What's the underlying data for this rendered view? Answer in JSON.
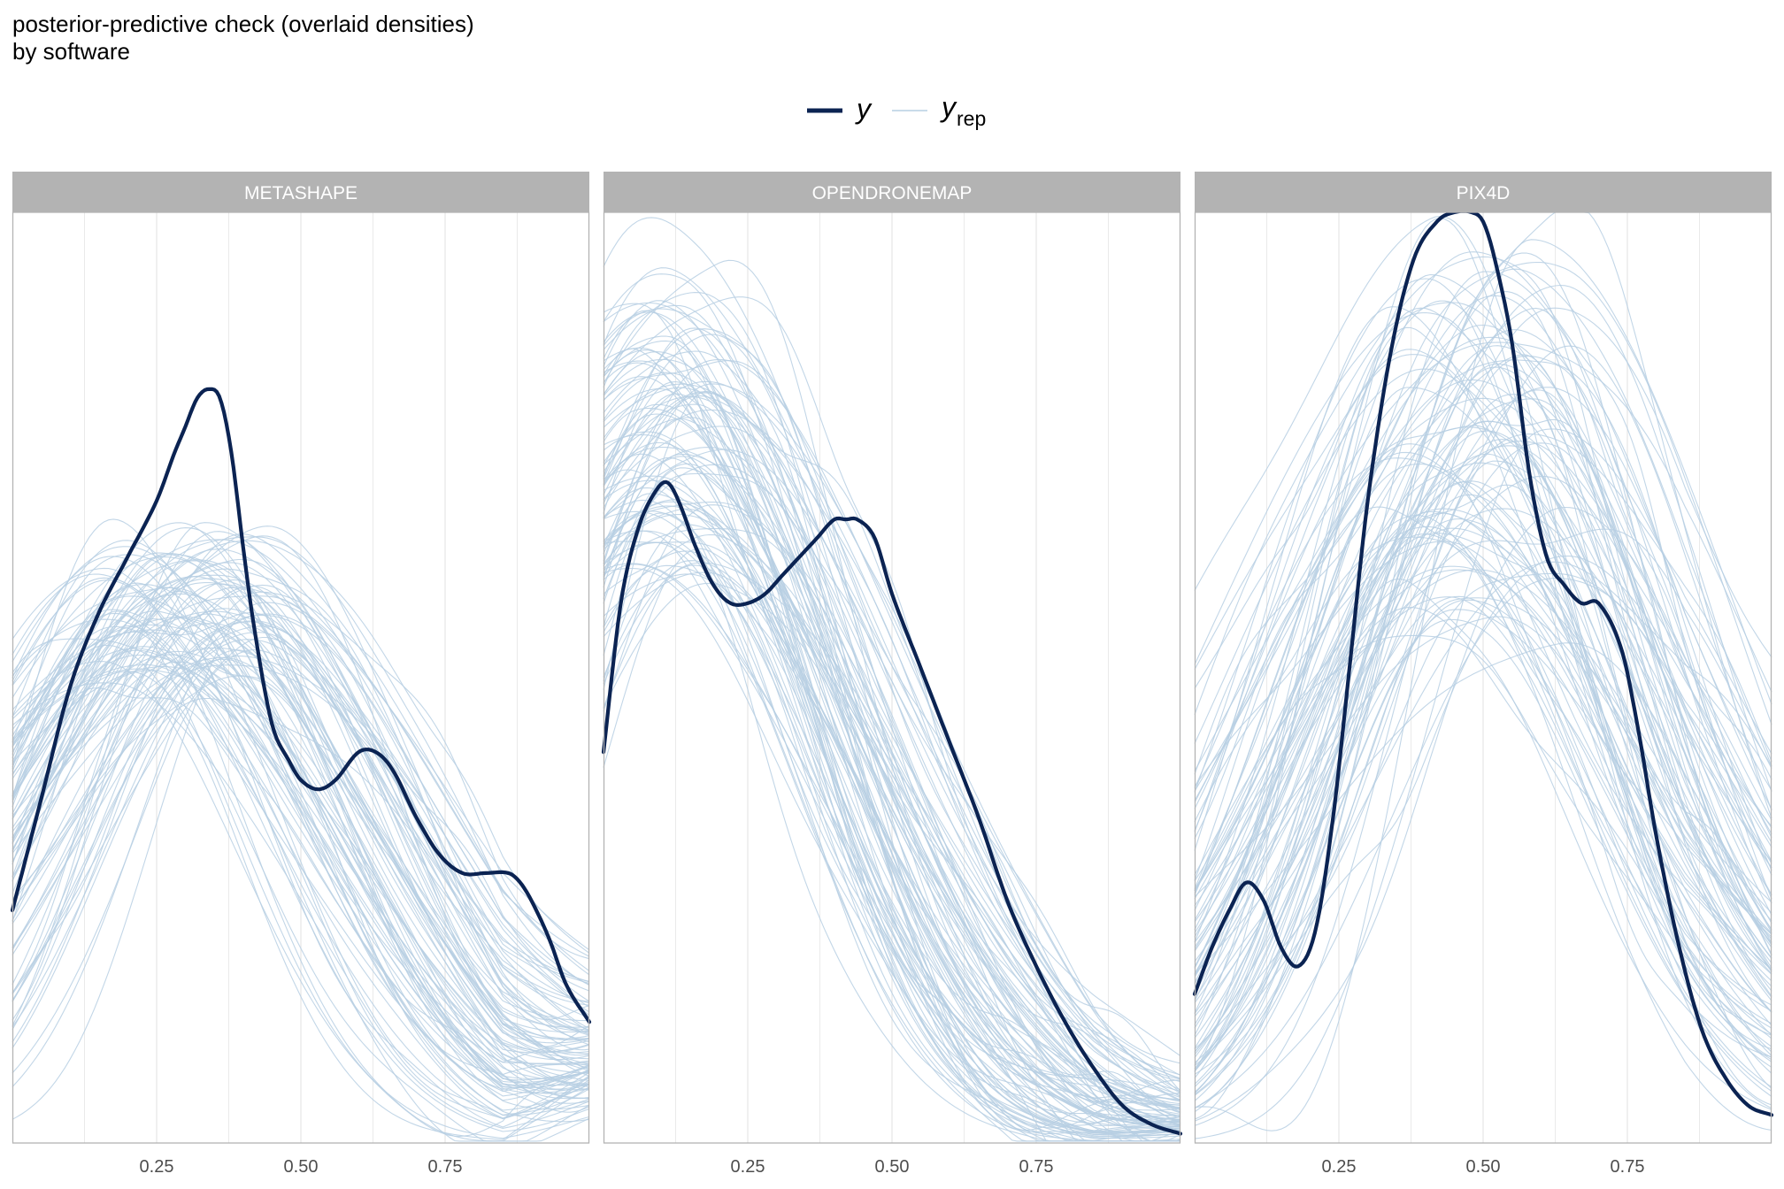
{
  "title": "posterior-predictive check (overlaid densities)",
  "subtitle": "by software",
  "legend": {
    "observed_label": "y",
    "replicated_label": "y",
    "replicated_subscript": "rep"
  },
  "colors": {
    "observed": "#0b2352",
    "replicated": "#b7cfe3",
    "strip": "#b3b3b3",
    "strip_text": "#ffffff",
    "grid": "#e5e5e5",
    "border": "#b3b3b3"
  },
  "chart_data": {
    "type": "line",
    "x_ticks": [
      0.25,
      0.5,
      0.75
    ],
    "x_tick_labels": [
      "0.25",
      "0.50",
      "0.75"
    ],
    "xlim": [
      0.0,
      1.0
    ],
    "y_axis_shown": false,
    "grid": true,
    "legend_position": "top",
    "panels": [
      {
        "name": "METASHAPE",
        "ylim": [
          0,
          1.0
        ],
        "series": [
          {
            "name": "y",
            "x": [
              0.0,
              0.05,
              0.1,
              0.15,
              0.2,
              0.25,
              0.28,
              0.3,
              0.32,
              0.34,
              0.36,
              0.38,
              0.4,
              0.42,
              0.45,
              0.48,
              0.5,
              0.53,
              0.56,
              0.6,
              0.63,
              0.66,
              0.7,
              0.74,
              0.78,
              0.82,
              0.86,
              0.88,
              0.9,
              0.93,
              0.96,
              1.0
            ],
            "values": [
              0.25,
              0.37,
              0.49,
              0.57,
              0.63,
              0.69,
              0.74,
              0.77,
              0.8,
              0.81,
              0.8,
              0.74,
              0.64,
              0.55,
              0.45,
              0.41,
              0.39,
              0.38,
              0.39,
              0.42,
              0.42,
              0.4,
              0.35,
              0.31,
              0.29,
              0.29,
              0.29,
              0.28,
              0.26,
              0.22,
              0.17,
              0.13
            ]
          }
        ],
        "replicates": {
          "count": 100,
          "x_range": [
            0.0,
            1.0
          ],
          "peak_location_approx": [
            0.15,
            0.45
          ],
          "peak_density_approx": [
            0.5,
            0.65
          ],
          "density_at_x1_approx": [
            0.05,
            0.15
          ]
        }
      },
      {
        "name": "OPENDRONEMAP",
        "ylim": [
          0,
          1.0
        ],
        "series": [
          {
            "name": "y",
            "x": [
              0.0,
              0.03,
              0.06,
              0.09,
              0.11,
              0.13,
              0.16,
              0.19,
              0.22,
              0.25,
              0.28,
              0.31,
              0.34,
              0.37,
              0.4,
              0.42,
              0.44,
              0.47,
              0.5,
              0.55,
              0.6,
              0.65,
              0.7,
              0.75,
              0.8,
              0.85,
              0.9,
              0.95,
              1.0
            ],
            "values": [
              0.42,
              0.58,
              0.66,
              0.7,
              0.71,
              0.69,
              0.64,
              0.6,
              0.58,
              0.58,
              0.59,
              0.61,
              0.63,
              0.65,
              0.67,
              0.67,
              0.67,
              0.65,
              0.59,
              0.51,
              0.43,
              0.35,
              0.26,
              0.19,
              0.13,
              0.08,
              0.04,
              0.02,
              0.01
            ]
          }
        ],
        "replicates": {
          "count": 100,
          "x_range": [
            0.0,
            1.0
          ],
          "peak_location_approx": [
            0.05,
            0.2
          ],
          "peak_density_approx": [
            0.6,
            0.92
          ],
          "density_at_x1_approx": [
            0.0,
            0.05
          ]
        }
      },
      {
        "name": "PIX4D",
        "ylim": [
          0,
          1.0
        ],
        "series": [
          {
            "name": "y",
            "x": [
              0.0,
              0.03,
              0.06,
              0.09,
              0.12,
              0.15,
              0.18,
              0.21,
              0.24,
              0.27,
              0.3,
              0.34,
              0.38,
              0.42,
              0.45,
              0.48,
              0.5,
              0.52,
              0.55,
              0.58,
              0.61,
              0.64,
              0.67,
              0.7,
              0.74,
              0.77,
              0.8,
              0.84,
              0.88,
              0.92,
              0.96,
              1.0
            ],
            "values": [
              0.16,
              0.21,
              0.25,
              0.28,
              0.26,
              0.21,
              0.19,
              0.23,
              0.35,
              0.52,
              0.69,
              0.85,
              0.95,
              0.99,
              1.0,
              1.0,
              0.99,
              0.95,
              0.86,
              0.72,
              0.63,
              0.6,
              0.58,
              0.58,
              0.53,
              0.44,
              0.33,
              0.21,
              0.12,
              0.07,
              0.04,
              0.03
            ]
          }
        ],
        "replicates": {
          "count": 100,
          "x_range": [
            0.0,
            1.0
          ],
          "peak_location_approx": [
            0.35,
            0.65
          ],
          "peak_density_approx": [
            0.55,
            0.98
          ],
          "density_at_x1_approx": [
            0.0,
            0.1
          ]
        }
      }
    ]
  }
}
